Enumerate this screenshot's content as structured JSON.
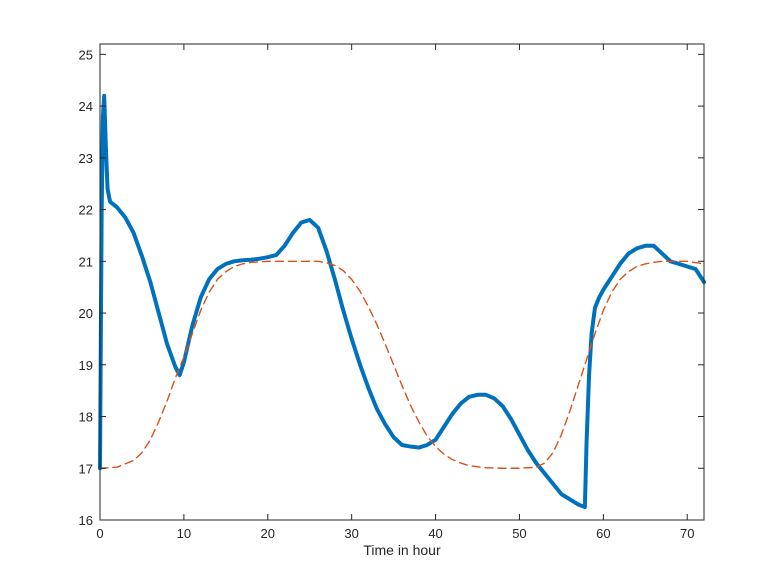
{
  "chart_data": {
    "type": "line",
    "title": "",
    "xlabel": "Time in hour",
    "ylabel": "",
    "xlim": [
      0,
      72
    ],
    "ylim": [
      16,
      25.2
    ],
    "xticks": [
      0,
      10,
      20,
      30,
      40,
      50,
      60,
      70
    ],
    "yticks": [
      16,
      17,
      18,
      19,
      20,
      21,
      22,
      23,
      24,
      25
    ],
    "grid": false,
    "legend": "none",
    "series": [
      {
        "color": "#0072BD",
        "style": "solid",
        "x": [
          0,
          0.2,
          0.35,
          0.5,
          0.7,
          0.9,
          1.2,
          2,
          3,
          4,
          5,
          6,
          7,
          8,
          9,
          9.5,
          10,
          11,
          12,
          13,
          14,
          15,
          16,
          17,
          18,
          19,
          20,
          21,
          22,
          23,
          24,
          25,
          26,
          27,
          28,
          29,
          30,
          31,
          32,
          33,
          34,
          35,
          36,
          37,
          38,
          39,
          40,
          41,
          42,
          43,
          44,
          45,
          46,
          47,
          48,
          49,
          50,
          51,
          52,
          53,
          54,
          55,
          56,
          57,
          57.8,
          58,
          58.3,
          58.6,
          59,
          59.5,
          60,
          61,
          62,
          63,
          64,
          65,
          66,
          67,
          68,
          69,
          70,
          71,
          72
        ],
        "y": [
          17.0,
          22.0,
          23.8,
          24.2,
          23.2,
          22.4,
          22.15,
          22.05,
          21.85,
          21.55,
          21.1,
          20.6,
          20.0,
          19.4,
          18.95,
          18.8,
          19.05,
          19.75,
          20.3,
          20.65,
          20.85,
          20.95,
          21.0,
          21.02,
          21.03,
          21.05,
          21.08,
          21.12,
          21.3,
          21.55,
          21.75,
          21.8,
          21.65,
          21.2,
          20.65,
          20.05,
          19.5,
          19.0,
          18.55,
          18.15,
          17.85,
          17.6,
          17.45,
          17.42,
          17.4,
          17.45,
          17.55,
          17.8,
          18.05,
          18.25,
          18.38,
          18.42,
          18.42,
          18.35,
          18.2,
          17.95,
          17.65,
          17.35,
          17.1,
          16.9,
          16.7,
          16.5,
          16.4,
          16.3,
          16.25,
          17.5,
          18.8,
          19.6,
          20.1,
          20.3,
          20.45,
          20.7,
          20.95,
          21.15,
          21.25,
          21.3,
          21.3,
          21.15,
          21.0,
          20.95,
          20.9,
          20.85,
          20.6
        ]
      },
      {
        "color": "#D95319",
        "style": "dashed",
        "x": [
          0,
          2,
          4,
          5,
          6,
          7,
          8,
          9,
          10,
          11,
          12,
          13,
          14,
          15,
          16,
          17,
          18,
          20,
          22,
          24,
          26,
          27,
          28,
          29,
          30,
          31,
          32,
          33,
          34,
          35,
          36,
          37,
          38,
          39,
          40,
          41,
          42,
          43,
          44,
          46,
          48,
          50,
          52,
          53,
          54,
          55,
          56,
          57,
          58,
          59,
          60,
          61,
          62,
          63,
          64,
          65,
          66,
          67,
          68,
          70,
          72
        ],
        "y": [
          17.0,
          17.02,
          17.15,
          17.3,
          17.55,
          17.9,
          18.3,
          18.75,
          19.15,
          19.6,
          20.05,
          20.4,
          20.65,
          20.8,
          20.9,
          20.95,
          20.98,
          21.0,
          21.0,
          21.0,
          21.0,
          20.97,
          20.92,
          20.82,
          20.65,
          20.42,
          20.12,
          19.78,
          19.4,
          19.0,
          18.6,
          18.22,
          17.9,
          17.62,
          17.42,
          17.27,
          17.17,
          17.1,
          17.05,
          17.01,
          17.0,
          17.0,
          17.02,
          17.1,
          17.3,
          17.65,
          18.1,
          18.6,
          19.1,
          19.6,
          20.05,
          20.4,
          20.65,
          20.8,
          20.9,
          20.95,
          20.98,
          21.0,
          21.0,
          21.0,
          20.95
        ]
      }
    ]
  }
}
